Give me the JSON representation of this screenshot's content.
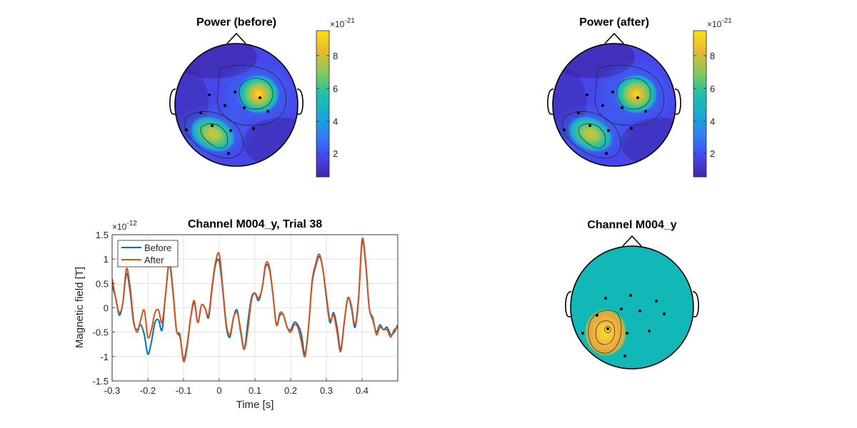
{
  "chart_data": [
    {
      "type": "heatmap",
      "title": "Power (before)",
      "colorbar": {
        "ticks": [
          "2",
          "4",
          "6",
          "8"
        ],
        "exponent_base": "×10",
        "exponent": "-21",
        "range": [
          0.5,
          9.5
        ]
      },
      "colormap": [
        "#3e26a8",
        "#4746eb",
        "#2f7ff5",
        "#1aa9d4",
        "#21c0a5",
        "#82ca5a",
        "#e6b932",
        "#fbe014"
      ],
      "hotspots": [
        {
          "label": "right-frontal",
          "peak": 9.0
        },
        {
          "label": "left-posterior",
          "peak": 7.4
        }
      ]
    },
    {
      "type": "heatmap",
      "title": "Power (after)",
      "colorbar": {
        "ticks": [
          "2",
          "4",
          "6",
          "8"
        ],
        "exponent_base": "×10",
        "exponent": "-21",
        "range": [
          0.5,
          9.5
        ]
      },
      "colormap": [
        "#3e26a8",
        "#4746eb",
        "#2f7ff5",
        "#1aa9d4",
        "#21c0a5",
        "#82ca5a",
        "#e6b932",
        "#fbe014"
      ],
      "hotspots": [
        {
          "label": "right-frontal",
          "peak": 9.0
        },
        {
          "label": "left-posterior",
          "peak": 7.4
        }
      ]
    },
    {
      "type": "line",
      "title": "Channel M004_y, Trial 38",
      "xlabel": "Time [s]",
      "ylabel": "Magnetic field [T]",
      "y_multiplier_base": "×10",
      "y_multiplier_exp": "-12",
      "xlim": [
        -0.3,
        0.5
      ],
      "ylim": [
        -1.5,
        1.5
      ],
      "xticks": [
        "-0.3",
        "-0.2",
        "-0.1",
        "0",
        "0.1",
        "0.2",
        "0.3",
        "0.4"
      ],
      "yticks": [
        "1.5",
        "1",
        "0.5",
        "0",
        "-0.5",
        "-1",
        "-1.5"
      ],
      "grid": true,
      "legend_position": "top-left",
      "series": [
        {
          "name": "Before",
          "color": "#0072bd",
          "x": [
            -0.3,
            -0.29,
            -0.28,
            -0.27,
            -0.26,
            -0.25,
            -0.24,
            -0.23,
            -0.22,
            -0.21,
            -0.2,
            -0.19,
            -0.18,
            -0.17,
            -0.16,
            -0.15,
            -0.14,
            -0.13,
            -0.12,
            -0.11,
            -0.1,
            -0.09,
            -0.08,
            -0.07,
            -0.06,
            -0.05,
            -0.04,
            -0.03,
            -0.02,
            -0.01,
            0.0,
            0.01,
            0.02,
            0.03,
            0.04,
            0.05,
            0.06,
            0.07,
            0.08,
            0.09,
            0.1,
            0.11,
            0.12,
            0.13,
            0.14,
            0.15,
            0.16,
            0.17,
            0.18,
            0.19,
            0.2,
            0.21,
            0.22,
            0.23,
            0.24,
            0.25,
            0.26,
            0.27,
            0.28,
            0.29,
            0.3,
            0.31,
            0.32,
            0.33,
            0.34,
            0.35,
            0.36,
            0.37,
            0.38,
            0.39,
            0.4,
            0.41,
            0.42,
            0.43,
            0.44,
            0.45,
            0.46,
            0.47,
            0.48,
            0.49,
            0.5
          ],
          "y": [
            0.45,
            0.2,
            -0.15,
            0.1,
            0.7,
            0.35,
            -0.3,
            -0.45,
            -0.35,
            -0.55,
            -0.95,
            -0.7,
            -0.3,
            -0.25,
            -0.45,
            0.3,
            0.9,
            0.35,
            -0.45,
            -0.6,
            -1.05,
            -0.75,
            -0.2,
            0.1,
            -0.3,
            0.05,
            0.0,
            -0.2,
            0.4,
            0.9,
            0.95,
            0.35,
            -0.4,
            -0.6,
            -0.2,
            -0.05,
            -0.5,
            -0.85,
            -0.3,
            0.2,
            0.3,
            0.15,
            0.4,
            0.85,
            0.8,
            0.3,
            -0.35,
            -0.15,
            -0.15,
            -0.4,
            -0.45,
            -0.3,
            -0.35,
            -0.55,
            -0.95,
            -0.4,
            0.5,
            0.85,
            1.05,
            0.8,
            0.2,
            -0.3,
            -0.1,
            -0.4,
            -0.85,
            -0.3,
            0.2,
            0.0,
            -0.4,
            0.15,
            1.35,
            0.9,
            0.0,
            -0.25,
            -0.5,
            -0.35,
            -0.45,
            -0.4,
            -0.55,
            -0.5,
            -0.35
          ]
        },
        {
          "name": "After",
          "color": "#d95319",
          "x": [
            -0.3,
            -0.29,
            -0.28,
            -0.27,
            -0.26,
            -0.25,
            -0.24,
            -0.23,
            -0.22,
            -0.21,
            -0.2,
            -0.19,
            -0.18,
            -0.17,
            -0.16,
            -0.15,
            -0.14,
            -0.13,
            -0.12,
            -0.11,
            -0.1,
            -0.09,
            -0.08,
            -0.07,
            -0.06,
            -0.05,
            -0.04,
            -0.03,
            -0.02,
            -0.01,
            0.0,
            0.01,
            0.02,
            0.03,
            0.04,
            0.05,
            0.06,
            0.07,
            0.08,
            0.09,
            0.1,
            0.11,
            0.12,
            0.13,
            0.14,
            0.15,
            0.16,
            0.17,
            0.18,
            0.19,
            0.2,
            0.21,
            0.22,
            0.23,
            0.24,
            0.25,
            0.26,
            0.27,
            0.28,
            0.29,
            0.3,
            0.31,
            0.32,
            0.33,
            0.34,
            0.35,
            0.36,
            0.37,
            0.38,
            0.39,
            0.4,
            0.41,
            0.42,
            0.43,
            0.44,
            0.45,
            0.46,
            0.47,
            0.48,
            0.49,
            0.5
          ],
          "y": [
            0.6,
            0.2,
            -0.1,
            0.1,
            0.8,
            0.45,
            -0.25,
            -0.5,
            -0.25,
            -0.05,
            -0.6,
            -0.45,
            -0.1,
            -0.05,
            -0.3,
            0.3,
            0.95,
            0.4,
            -0.45,
            -0.55,
            -1.1,
            -0.8,
            -0.2,
            0.15,
            -0.3,
            0.05,
            0.0,
            -0.15,
            0.45,
            0.95,
            1.1,
            0.4,
            -0.35,
            -0.55,
            -0.2,
            -0.1,
            -0.45,
            -0.85,
            -0.45,
            0.15,
            0.3,
            0.2,
            0.4,
            0.9,
            0.85,
            0.3,
            -0.35,
            -0.1,
            -0.15,
            -0.4,
            -0.5,
            -0.35,
            -0.4,
            -0.7,
            -1.0,
            -0.4,
            0.55,
            0.9,
            1.1,
            0.8,
            0.25,
            -0.25,
            -0.15,
            -0.5,
            -0.9,
            -0.3,
            0.2,
            0.05,
            -0.35,
            0.2,
            1.4,
            0.95,
            0.0,
            -0.2,
            -0.55,
            -0.4,
            -0.45,
            -0.45,
            -0.6,
            -0.45,
            -0.4
          ]
        }
      ]
    },
    {
      "type": "heatmap",
      "title": "Channel M004_y",
      "background_color": "#12b8b8",
      "hotspots": [
        {
          "label": "left-posterior",
          "peak": 1.0
        }
      ]
    }
  ]
}
